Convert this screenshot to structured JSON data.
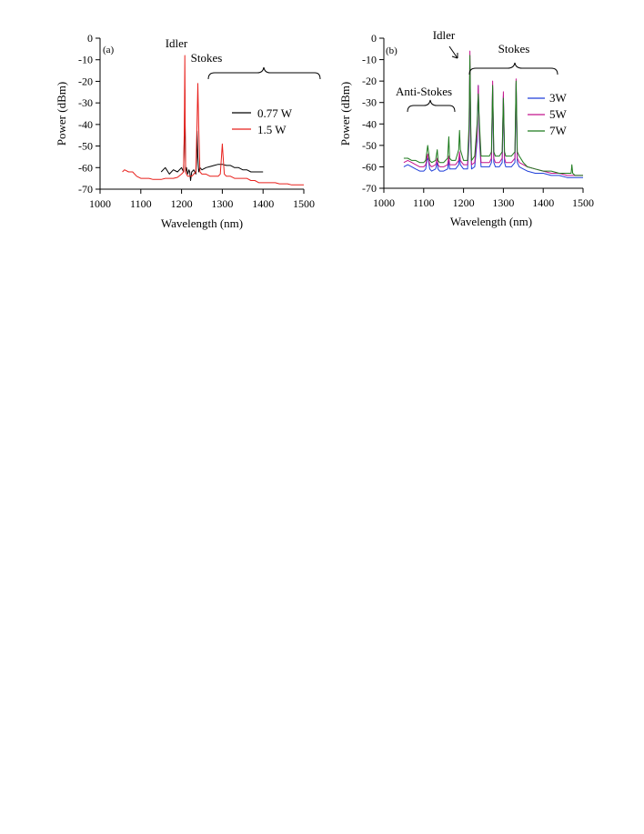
{
  "chart_data": [
    {
      "type": "line",
      "panel_label": "(a)",
      "xlabel": "Wavelength (nm)",
      "ylabel": "Power (dBm)",
      "xlim": [
        1000,
        1500
      ],
      "ylim": [
        -70,
        0
      ],
      "x_ticks": [
        "1000",
        "1100",
        "1200",
        "1300",
        "1400",
        "1500"
      ],
      "y_ticks": [
        "0",
        "-10",
        "-20",
        "-30",
        "-40",
        "-50",
        "-60",
        "-70"
      ],
      "grid": false,
      "legend_position": "right",
      "annotations": [
        {
          "text": "Idler",
          "x": 1200,
          "y": -3
        },
        {
          "text": "Stokes",
          "x": 1290,
          "y": -10,
          "brace_from": 1225,
          "brace_to": 1350,
          "brace_y": -18
        }
      ],
      "series": [
        {
          "name": "0.77 W",
          "color": "#000000",
          "x": [
            1150,
            1160,
            1170,
            1180,
            1190,
            1200,
            1205,
            1207,
            1208,
            1209,
            1210,
            1212,
            1215,
            1218,
            1220,
            1222,
            1225,
            1230,
            1235,
            1237,
            1238,
            1240,
            1242,
            1245,
            1250,
            1260,
            1270,
            1280,
            1290,
            1300,
            1310,
            1320,
            1330,
            1340,
            1350,
            1360,
            1370,
            1380,
            1390,
            1400
          ],
          "y": [
            -62,
            -60,
            -63,
            -61,
            -62,
            -60,
            -62,
            -45,
            -24,
            -45,
            -62,
            -60,
            -63,
            -61,
            -62,
            -66,
            -62,
            -61,
            -63,
            -55,
            -43,
            -55,
            -62,
            -60,
            -61,
            -60,
            -59.5,
            -59,
            -58.5,
            -58.5,
            -59,
            -59,
            -60,
            -60,
            -61,
            -61,
            -62,
            -62,
            -62,
            -62
          ]
        },
        {
          "name": "1.5 W",
          "color": "#e8201c",
          "x": [
            1055,
            1060,
            1070,
            1080,
            1090,
            1100,
            1110,
            1120,
            1130,
            1140,
            1150,
            1160,
            1170,
            1180,
            1190,
            1200,
            1205,
            1207,
            1208,
            1209,
            1210,
            1212,
            1215,
            1220,
            1225,
            1230,
            1235,
            1238,
            1240,
            1242,
            1245,
            1250,
            1260,
            1270,
            1280,
            1290,
            1295,
            1298,
            1300,
            1302,
            1305,
            1310,
            1320,
            1330,
            1340,
            1350,
            1360,
            1370,
            1380,
            1390,
            1400,
            1410,
            1420,
            1430,
            1440,
            1450,
            1460,
            1470,
            1480,
            1490,
            1500
          ],
          "y": [
            -62,
            -61,
            -62,
            -62,
            -64,
            -65,
            -65,
            -65,
            -65.5,
            -65.5,
            -65.5,
            -65,
            -65,
            -65,
            -64.5,
            -63,
            -62,
            -40,
            -8,
            -40,
            -62,
            -63,
            -64,
            -64,
            -64,
            -63,
            -62,
            -40,
            -21,
            -40,
            -62,
            -63,
            -63,
            -64,
            -64,
            -64,
            -63,
            -55,
            -49,
            -55,
            -63,
            -64,
            -64,
            -65,
            -65,
            -65,
            -65,
            -66,
            -66,
            -67,
            -67,
            -67,
            -67,
            -67,
            -67.5,
            -67.5,
            -67.5,
            -68,
            -68,
            -68,
            -68
          ]
        }
      ]
    },
    {
      "type": "line",
      "panel_label": "(b)",
      "xlabel": "Wavelength (nm)",
      "ylabel": "Power (dBm)",
      "xlim": [
        1000,
        1500
      ],
      "ylim": [
        -70,
        0
      ],
      "x_ticks": [
        "1000",
        "1100",
        "1200",
        "1300",
        "1400",
        "1500"
      ],
      "y_ticks": [
        "0",
        "-10",
        "-20",
        "-30",
        "-40",
        "-50",
        "-60",
        "-70"
      ],
      "grid": false,
      "legend_position": "right",
      "annotations": [
        {
          "text": "Idler",
          "x": 1195,
          "y": 1
        },
        {
          "text": "Stokes",
          "x": 1325,
          "y": -4,
          "brace_from": 1225,
          "brace_to": 1485,
          "brace_y": -12
        },
        {
          "text": "Anti-Stokes",
          "x": 1115,
          "y": -23,
          "brace_from": 1075,
          "brace_to": 1190,
          "brace_y": -31
        }
      ],
      "series": [
        {
          "name": "3W",
          "color": "#1f3fd9",
          "x": [
            1050,
            1060,
            1070,
            1080,
            1090,
            1100,
            1105,
            1108,
            1110,
            1112,
            1115,
            1120,
            1130,
            1134,
            1136,
            1140,
            1150,
            1160,
            1163,
            1165,
            1170,
            1180,
            1188,
            1190,
            1192,
            1200,
            1210,
            1214,
            1216,
            1218,
            1220,
            1228,
            1234,
            1237,
            1240,
            1244,
            1250,
            1258,
            1265,
            1270,
            1273,
            1276,
            1280,
            1290,
            1297,
            1300,
            1303,
            1306,
            1310,
            1320,
            1329,
            1332,
            1335,
            1340,
            1350,
            1360,
            1380,
            1400,
            1420,
            1440,
            1460,
            1480,
            1500
          ],
          "y": [
            -60,
            -59,
            -60,
            -61,
            -62,
            -62,
            -61,
            -57,
            -56,
            -57,
            -61,
            -62,
            -61,
            -58,
            -61,
            -62,
            -62,
            -61,
            -57,
            -61,
            -61,
            -61,
            -59,
            -55,
            -59,
            -61,
            -61,
            -48,
            -13,
            -48,
            -61,
            -60,
            -48,
            -22,
            -48,
            -60,
            -60,
            -60,
            -60,
            -58,
            -23,
            -58,
            -60,
            -60,
            -58,
            -27,
            -58,
            -60,
            -60,
            -60,
            -58,
            -21,
            -58,
            -60,
            -61,
            -62,
            -63,
            -63,
            -64,
            -64,
            -65,
            -65,
            -65
          ]
        },
        {
          "name": "5W",
          "color": "#c4148c",
          "x": [
            1050,
            1060,
            1070,
            1080,
            1090,
            1100,
            1105,
            1108,
            1110,
            1112,
            1115,
            1120,
            1130,
            1134,
            1136,
            1140,
            1150,
            1160,
            1163,
            1165,
            1170,
            1180,
            1188,
            1190,
            1192,
            1200,
            1210,
            1214,
            1216,
            1218,
            1220,
            1228,
            1234,
            1237,
            1240,
            1244,
            1250,
            1258,
            1265,
            1270,
            1273,
            1276,
            1280,
            1290,
            1297,
            1300,
            1303,
            1306,
            1310,
            1320,
            1329,
            1332,
            1335,
            1340,
            1350,
            1360,
            1380,
            1400,
            1420,
            1440,
            1460,
            1480,
            1500
          ],
          "y": [
            -58,
            -57,
            -58,
            -59,
            -60,
            -60,
            -59,
            -56,
            -54,
            -56,
            -59,
            -60,
            -59,
            -56,
            -59,
            -60,
            -60,
            -59,
            -55,
            -59,
            -59,
            -59,
            -57,
            -53,
            -57,
            -59,
            -59,
            -45,
            -6,
            -45,
            -59,
            -58,
            -45,
            -22,
            -45,
            -58,
            -58,
            -58,
            -58,
            -56,
            -20,
            -56,
            -58,
            -58,
            -56,
            -25,
            -56,
            -58,
            -58,
            -58,
            -56,
            -19,
            -56,
            -58,
            -59,
            -60,
            -61,
            -62,
            -63,
            -63,
            -64,
            -64,
            -64
          ]
        },
        {
          "name": "7W",
          "color": "#1c7a1c",
          "x": [
            1050,
            1060,
            1070,
            1080,
            1090,
            1100,
            1105,
            1108,
            1110,
            1112,
            1115,
            1120,
            1130,
            1134,
            1136,
            1140,
            1150,
            1160,
            1163,
            1165,
            1170,
            1180,
            1188,
            1190,
            1192,
            1200,
            1210,
            1214,
            1216,
            1218,
            1220,
            1228,
            1234,
            1237,
            1240,
            1244,
            1250,
            1258,
            1265,
            1270,
            1273,
            1276,
            1280,
            1290,
            1297,
            1300,
            1303,
            1306,
            1310,
            1320,
            1329,
            1332,
            1335,
            1340,
            1350,
            1360,
            1380,
            1400,
            1420,
            1440,
            1460,
            1470,
            1472,
            1474,
            1480,
            1500
          ],
          "y": [
            -56,
            -56,
            -57,
            -57,
            -58,
            -58,
            -57,
            -53,
            -50,
            -53,
            -57,
            -58,
            -57,
            -52,
            -57,
            -58,
            -58,
            -56,
            -46,
            -56,
            -57,
            -57,
            -52,
            -43,
            -52,
            -57,
            -57,
            -40,
            -8,
            -40,
            -57,
            -55,
            -40,
            -26,
            -40,
            -55,
            -55,
            -55,
            -55,
            -53,
            -22,
            -53,
            -55,
            -55,
            -53,
            -28,
            -53,
            -55,
            -55,
            -55,
            -53,
            -20,
            -53,
            -55,
            -58,
            -60,
            -61,
            -62,
            -62,
            -63,
            -63,
            -63,
            -59,
            -63,
            -64,
            -64
          ]
        }
      ]
    }
  ]
}
